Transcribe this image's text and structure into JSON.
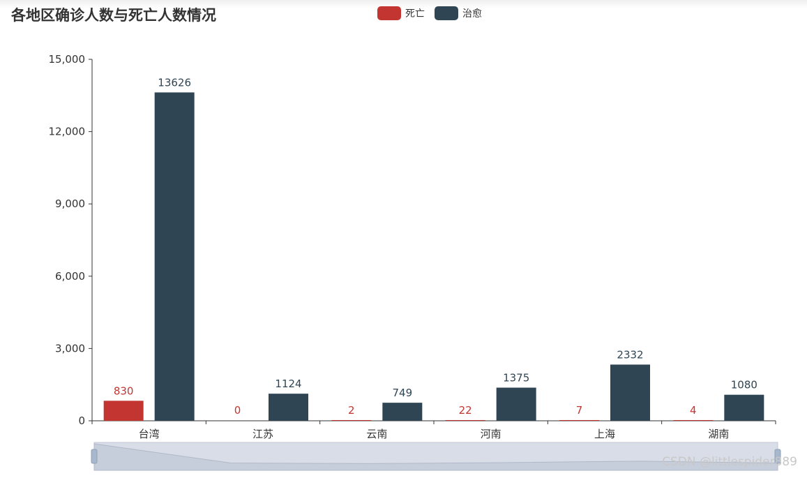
{
  "title": "各地区确诊人数与死亡人数情况",
  "watermark": "CSDN @littlespider889",
  "chart_data": {
    "type": "bar",
    "categories": [
      "台湾",
      "江苏",
      "云南",
      "河南",
      "上海",
      "湖南"
    ],
    "series": [
      {
        "name": "死亡",
        "color": "#c23531",
        "values": [
          830,
          0,
          2,
          22,
          7,
          4
        ]
      },
      {
        "name": "治愈",
        "color": "#2f4554",
        "values": [
          13626,
          1124,
          749,
          1375,
          2332,
          1080
        ]
      }
    ],
    "ylim": [
      0,
      15000
    ],
    "yticks": [
      "0",
      "3,000",
      "6,000",
      "9,000",
      "12,000",
      "15,000"
    ],
    "ytick_values": [
      0,
      3000,
      6000,
      9000,
      12000,
      15000
    ],
    "legend_position": "top-center",
    "data_labels": true,
    "grid": false,
    "data_zoom_slider": true
  }
}
